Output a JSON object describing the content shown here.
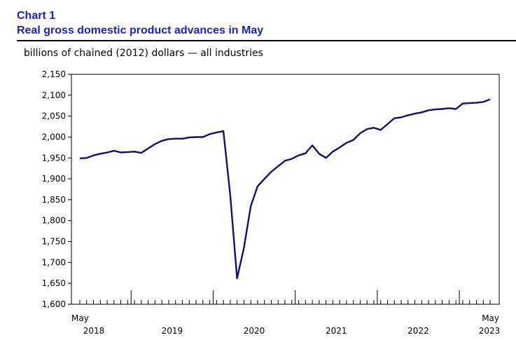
{
  "header": {
    "chart_label": "Chart 1",
    "title": "Real gross domestic product advances in May",
    "unit_label": "billions of chained (2012) dollars — all industries"
  },
  "colors": {
    "title": "#1a22cc",
    "line": "#10106e",
    "axis": "#000000"
  },
  "chart_data": {
    "type": "line",
    "title": "Real gross domestic product advances in May",
    "ylabel": "billions of chained (2012) dollars — all industries",
    "xlabel": "",
    "ylim": [
      1600,
      2150
    ],
    "yticks": [
      1600,
      1650,
      1700,
      1750,
      1800,
      1850,
      1900,
      1950,
      2000,
      2050,
      2100,
      2150
    ],
    "ytick_labels": [
      "1,600",
      "1,650",
      "1,700",
      "1,750",
      "1,800",
      "1,850",
      "1,900",
      "1,950",
      "2,000",
      "2,050",
      "2,100",
      "2,150"
    ],
    "x_start": "2018-05",
    "x_end": "2023-05",
    "x_start_label": "May",
    "x_end_label": "May",
    "year_labels": [
      "2018",
      "2019",
      "2020",
      "2021",
      "2022",
      "2023"
    ],
    "grid": false,
    "legend": "none",
    "series": [
      {
        "x": [
          "2018-05",
          "2018-06",
          "2018-07",
          "2018-08",
          "2018-09",
          "2018-10",
          "2018-11",
          "2018-12",
          "2019-01",
          "2019-02",
          "2019-03",
          "2019-04",
          "2019-05",
          "2019-06",
          "2019-07",
          "2019-08",
          "2019-09",
          "2019-10",
          "2019-11",
          "2019-12",
          "2020-01",
          "2020-02",
          "2020-03",
          "2020-04",
          "2020-05",
          "2020-06",
          "2020-07",
          "2020-08",
          "2020-09",
          "2020-10",
          "2020-11",
          "2020-12",
          "2021-01",
          "2021-02",
          "2021-03",
          "2021-04",
          "2021-05",
          "2021-06",
          "2021-07",
          "2021-08",
          "2021-09",
          "2021-10",
          "2021-11",
          "2021-12",
          "2022-01",
          "2022-02",
          "2022-03",
          "2022-04",
          "2022-05",
          "2022-06",
          "2022-07",
          "2022-08",
          "2022-09",
          "2022-10",
          "2022-11",
          "2022-12",
          "2023-01",
          "2023-02",
          "2023-03",
          "2023-04",
          "2023-05"
        ],
        "values": [
          1949,
          1950,
          1956,
          1960,
          1963,
          1967,
          1963,
          1964,
          1965,
          1962,
          1973,
          1983,
          1991,
          1995,
          1996,
          1996,
          1999,
          2000,
          2000,
          2007,
          2011,
          2014,
          1860,
          1662,
          1735,
          1835,
          1882,
          1900,
          1917,
          1930,
          1943,
          1948,
          1956,
          1961,
          1980,
          1960,
          1950,
          1965,
          1975,
          1986,
          1993,
          2009,
          2019,
          2022,
          2017,
          2031,
          2045,
          2047,
          2052,
          2056,
          2059,
          2064,
          2066,
          2067,
          2069,
          2067,
          2080,
          2081,
          2082,
          2084,
          2090
        ]
      }
    ]
  }
}
